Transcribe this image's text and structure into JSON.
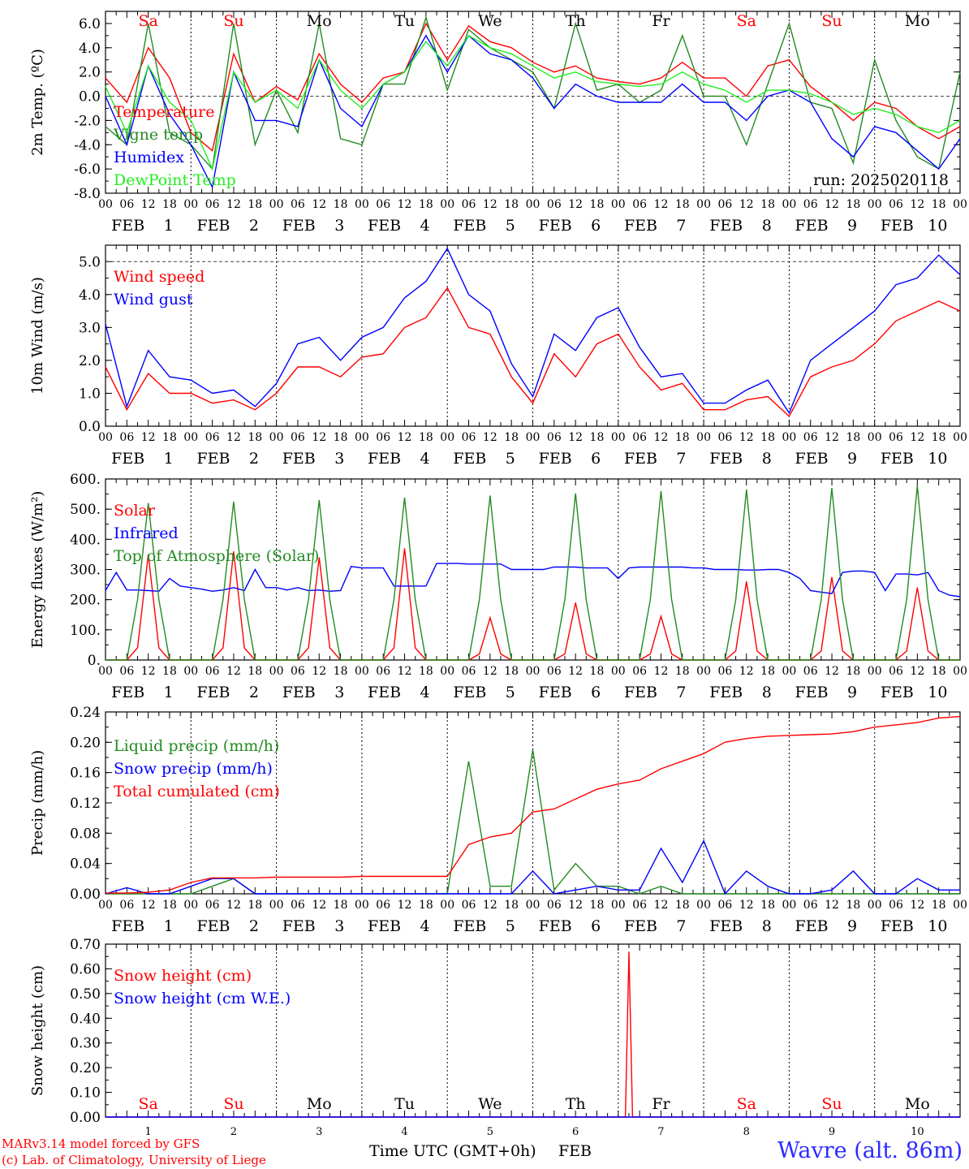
{
  "run_label": "run: 2025020118",
  "station": "Wavre (alt. 86m)",
  "credit": {
    "line1": "MARv3.14 model forced by GFS",
    "line2": "(c) Lab. of Climatology, University of Liege"
  },
  "time_axis": {
    "label": "Time UTC (GMT+0h)",
    "month": "FEB",
    "hour_ticks": [
      "00",
      "06",
      "12",
      "18"
    ],
    "days": [
      "1",
      "2",
      "3",
      "4",
      "5",
      "6",
      "7",
      "8",
      "9",
      "10"
    ],
    "weekdays": [
      "Sa",
      "Su",
      "Mo",
      "Tu",
      "We",
      "Th",
      "Fr",
      "Sa",
      "Su",
      "Mo"
    ],
    "weekend_color": "#ff0000",
    "weekday_color": "#000000"
  },
  "chart_data": [
    {
      "type": "line",
      "ylabel": "2m Temp. (ºC)",
      "ylim": [
        -8,
        7
      ],
      "yticks": [
        "-8.0",
        "-6.0",
        "-4.0",
        "-2.0",
        "0.0",
        "2.0",
        "4.0",
        "6.0"
      ],
      "ytick_values": [
        -8,
        -6,
        -4,
        -2,
        0,
        2,
        4,
        6
      ],
      "zero_line": 0,
      "x": [
        0,
        6,
        12,
        18,
        24,
        30,
        36,
        42,
        48,
        54,
        60,
        66,
        72,
        78,
        84,
        90,
        96,
        102,
        108,
        114,
        120,
        126,
        132,
        138,
        144,
        150,
        156,
        162,
        168,
        174,
        180,
        186,
        192,
        198,
        204,
        210,
        216,
        222,
        228,
        234,
        240
      ],
      "series": [
        {
          "name": "Temperature",
          "color": "#ff0000",
          "values": [
            1.5,
            -0.5,
            4.0,
            1.5,
            -3.0,
            -4.5,
            3.5,
            -0.5,
            0.8,
            -0.3,
            3.5,
            1.0,
            -0.5,
            1.5,
            2.0,
            6.0,
            3.0,
            5.8,
            4.5,
            4.0,
            2.8,
            2.0,
            2.5,
            1.5,
            1.2,
            1.0,
            1.5,
            2.8,
            1.5,
            1.5,
            0.0,
            2.5,
            3.0,
            0.8,
            -0.5,
            -2.0,
            -0.5,
            -1.0,
            -2.5,
            -3.5,
            -2.5
          ]
        },
        {
          "name": "Vigne temp",
          "color": "#228b22",
          "values": [
            -2.5,
            -4.0,
            6.0,
            -3.0,
            -4.0,
            -6.0,
            6.0,
            -4.0,
            0.5,
            -3.0,
            6.0,
            -3.5,
            -4.0,
            1.0,
            1.0,
            6.5,
            0.5,
            5.5,
            4.0,
            3.0,
            2.0,
            -1.0,
            6.0,
            0.5,
            1.0,
            -0.5,
            0.5,
            5.0,
            0.0,
            0.0,
            -4.0,
            1.0,
            6.0,
            -0.5,
            -1.0,
            -5.5,
            3.0,
            -2.0,
            -5.0,
            -6.0,
            2.0
          ]
        },
        {
          "name": "Humidex",
          "color": "#0000ff",
          "values": [
            0.0,
            -4.0,
            2.5,
            -1.5,
            -4.0,
            -7.5,
            2.0,
            -2.0,
            -2.0,
            -2.5,
            3.0,
            -1.0,
            -2.5,
            1.0,
            2.0,
            5.0,
            2.0,
            5.0,
            3.5,
            3.0,
            1.5,
            -1.0,
            1.0,
            0.0,
            -0.5,
            -0.5,
            -0.5,
            1.0,
            -0.5,
            -0.5,
            -2.0,
            0.0,
            0.5,
            -0.5,
            -3.5,
            -5.0,
            -2.5,
            -3.0,
            -4.5,
            -6.0,
            -3.5
          ]
        },
        {
          "name": "DewPoint Temp",
          "color": "#22ee22",
          "values": [
            0.8,
            -3.0,
            2.5,
            -0.5,
            -2.0,
            -6.0,
            2.0,
            -0.5,
            0.5,
            -1.0,
            3.0,
            0.5,
            -1.0,
            1.0,
            2.0,
            4.5,
            2.5,
            5.0,
            4.0,
            3.5,
            2.5,
            1.5,
            2.0,
            1.2,
            1.0,
            0.8,
            1.0,
            2.0,
            1.0,
            0.5,
            -0.5,
            0.5,
            0.5,
            0.2,
            -0.5,
            -1.5,
            -1.0,
            -1.5,
            -2.5,
            -3.0,
            -2.0
          ]
        }
      ],
      "legend_placement": "left"
    },
    {
      "type": "line",
      "ylabel": "10m Wind (m/s)",
      "ylim": [
        0,
        5.5
      ],
      "yticks": [
        "0.0",
        "1.0",
        "2.0",
        "3.0",
        "4.0",
        "5.0"
      ],
      "ytick_values": [
        0,
        1,
        2,
        3,
        4,
        5
      ],
      "reference_line": 5,
      "x": [
        0,
        6,
        12,
        18,
        24,
        30,
        36,
        42,
        48,
        54,
        60,
        66,
        72,
        78,
        84,
        90,
        96,
        102,
        108,
        114,
        120,
        126,
        132,
        138,
        144,
        150,
        156,
        162,
        168,
        174,
        180,
        186,
        192,
        198,
        204,
        210,
        216,
        222,
        228,
        234,
        240
      ],
      "series": [
        {
          "name": "Wind speed",
          "color": "#ff0000",
          "values": [
            1.8,
            0.5,
            1.6,
            1.0,
            1.0,
            0.7,
            0.8,
            0.5,
            1.0,
            1.8,
            1.8,
            1.5,
            2.1,
            2.2,
            3.0,
            3.3,
            4.2,
            3.0,
            2.8,
            1.5,
            0.7,
            2.2,
            1.5,
            2.5,
            2.8,
            1.8,
            1.1,
            1.3,
            0.5,
            0.5,
            0.8,
            0.9,
            0.3,
            1.5,
            1.8,
            2.0,
            2.5,
            3.2,
            3.5,
            3.8,
            3.5
          ]
        },
        {
          "name": "Wind gust",
          "color": "#0000ff",
          "values": [
            3.1,
            0.6,
            2.3,
            1.5,
            1.4,
            1.0,
            1.1,
            0.6,
            1.3,
            2.5,
            2.7,
            2.0,
            2.7,
            3.0,
            3.9,
            4.4,
            5.4,
            4.0,
            3.5,
            1.9,
            0.9,
            2.8,
            2.3,
            3.3,
            3.6,
            2.4,
            1.5,
            1.6,
            0.7,
            0.7,
            1.1,
            1.4,
            0.4,
            2.0,
            2.5,
            3.0,
            3.5,
            4.3,
            4.5,
            5.2,
            4.6
          ]
        }
      ],
      "legend_placement": "left"
    },
    {
      "type": "line",
      "ylabel": "Energy fluxes (W/m²)",
      "ylim": [
        0,
        600
      ],
      "yticks": [
        "0.",
        "100.",
        "200.",
        "300.",
        "400.",
        "500.",
        "600."
      ],
      "ytick_values": [
        0,
        100,
        200,
        300,
        400,
        500,
        600
      ],
      "x": [
        0,
        3,
        6,
        9,
        12,
        15,
        18,
        21,
        24,
        27,
        30,
        33,
        36,
        39,
        42,
        45,
        48,
        51,
        54,
        57,
        60,
        63,
        66,
        69,
        72,
        75,
        78,
        81,
        84,
        87,
        90,
        93,
        96,
        99,
        102,
        105,
        108,
        111,
        114,
        117,
        120,
        123,
        126,
        129,
        132,
        135,
        138,
        141,
        144,
        147,
        150,
        153,
        156,
        159,
        162,
        165,
        168,
        171,
        174,
        177,
        180,
        183,
        186,
        189,
        192,
        195,
        198,
        201,
        204,
        207,
        210,
        213,
        216,
        219,
        222,
        225,
        228,
        231,
        234,
        237,
        240
      ],
      "series": [
        {
          "name": "Solar",
          "color": "#ff0000",
          "values": [
            0,
            0,
            0,
            40,
            350,
            40,
            0,
            0,
            0,
            0,
            0,
            40,
            360,
            40,
            0,
            0,
            0,
            0,
            0,
            40,
            340,
            40,
            0,
            0,
            0,
            0,
            0,
            40,
            370,
            40,
            0,
            0,
            0,
            0,
            0,
            20,
            140,
            20,
            0,
            0,
            0,
            0,
            0,
            20,
            190,
            20,
            0,
            0,
            0,
            0,
            0,
            20,
            145,
            20,
            0,
            0,
            0,
            0,
            0,
            30,
            260,
            30,
            0,
            0,
            0,
            0,
            0,
            30,
            275,
            30,
            0,
            0,
            0,
            0,
            0,
            30,
            240,
            30,
            0,
            0,
            0
          ]
        },
        {
          "name": "Infrared",
          "color": "#0000ff",
          "values": [
            230,
            290,
            232,
            232,
            230,
            228,
            270,
            245,
            240,
            235,
            228,
            232,
            240,
            230,
            300,
            240,
            240,
            232,
            240,
            230,
            232,
            228,
            230,
            310,
            305,
            305,
            305,
            245,
            245,
            245,
            245,
            320,
            320,
            320,
            318,
            318,
            318,
            318,
            300,
            300,
            300,
            300,
            308,
            308,
            308,
            305,
            305,
            305,
            270,
            305,
            308,
            308,
            308,
            308,
            308,
            305,
            305,
            300,
            300,
            300,
            298,
            298,
            300,
            300,
            290,
            270,
            230,
            225,
            220,
            290,
            295,
            295,
            290,
            230,
            285,
            285,
            282,
            290,
            230,
            215,
            210
          ]
        },
        {
          "name": "Top of Atmosphere (Solar)",
          "color": "#228b22",
          "values": [
            0,
            0,
            0,
            200,
            520,
            200,
            0,
            0,
            0,
            0,
            0,
            200,
            525,
            200,
            0,
            0,
            0,
            0,
            0,
            200,
            530,
            200,
            0,
            0,
            0,
            0,
            0,
            200,
            538,
            200,
            0,
            0,
            0,
            0,
            0,
            200,
            545,
            200,
            0,
            0,
            0,
            0,
            0,
            200,
            552,
            200,
            0,
            0,
            0,
            0,
            0,
            200,
            560,
            200,
            0,
            0,
            0,
            0,
            0,
            200,
            565,
            200,
            0,
            0,
            0,
            0,
            0,
            200,
            570,
            200,
            0,
            0,
            0,
            0,
            0,
            200,
            578,
            200,
            0,
            0,
            0
          ]
        }
      ],
      "legend_placement": "left"
    },
    {
      "type": "line",
      "ylabel": "Precip (mm/h)",
      "ylim": [
        0,
        0.24
      ],
      "yticks": [
        "0.00",
        "0.04",
        "0.08",
        "0.12",
        "0.16",
        "0.20",
        "0.24"
      ],
      "ytick_values": [
        0,
        0.04,
        0.08,
        0.12,
        0.16,
        0.2,
        0.24
      ],
      "x": [
        0,
        6,
        12,
        18,
        24,
        30,
        36,
        42,
        48,
        54,
        60,
        66,
        72,
        78,
        84,
        90,
        96,
        102,
        108,
        114,
        120,
        126,
        132,
        138,
        144,
        150,
        156,
        162,
        168,
        174,
        180,
        186,
        192,
        198,
        204,
        210,
        216,
        222,
        228,
        234,
        240
      ],
      "series": [
        {
          "name": "Liquid precip (mm/h)",
          "color": "#228b22",
          "values": [
            0,
            0,
            0,
            0,
            0,
            0.01,
            0.02,
            0,
            0,
            0,
            0,
            0,
            0,
            0,
            0,
            0,
            0,
            0.175,
            0.01,
            0.01,
            0.19,
            0.005,
            0.04,
            0.01,
            0.01,
            0,
            0.01,
            0,
            0,
            0,
            0,
            0,
            0,
            0,
            0,
            0,
            0,
            0,
            0,
            0,
            0
          ]
        },
        {
          "name": "Snow precip (mm/h)",
          "color": "#0000ff",
          "values": [
            0,
            0.008,
            0,
            0,
            0.01,
            0.02,
            0.02,
            0,
            0,
            0,
            0,
            0,
            0,
            0,
            0,
            0,
            0,
            0,
            0,
            0,
            0.03,
            0,
            0.005,
            0.01,
            0.005,
            0.005,
            0.06,
            0.015,
            0.07,
            0,
            0.03,
            0.01,
            0,
            0,
            0.005,
            0.03,
            0,
            0,
            0.02,
            0.005,
            0.005
          ]
        },
        {
          "name": "Total cumulated (cm)",
          "color": "#ff0000",
          "values": [
            0.001,
            0.001,
            0.002,
            0.005,
            0.015,
            0.021,
            0.021,
            0.021,
            0.022,
            0.022,
            0.022,
            0.022,
            0.023,
            0.023,
            0.023,
            0.023,
            0.023,
            0.065,
            0.075,
            0.08,
            0.108,
            0.112,
            0.125,
            0.138,
            0.145,
            0.15,
            0.165,
            0.175,
            0.185,
            0.2,
            0.205,
            0.208,
            0.209,
            0.21,
            0.211,
            0.214,
            0.22,
            0.223,
            0.226,
            0.232,
            0.234
          ]
        }
      ],
      "legend_placement": "left"
    },
    {
      "type": "line",
      "ylabel": "Snow height (cm)",
      "ylim": [
        0,
        0.7
      ],
      "yticks": [
        "0.00",
        "0.10",
        "0.20",
        "0.30",
        "0.40",
        "0.50",
        "0.60",
        "0.70"
      ],
      "ytick_values": [
        0,
        0.1,
        0.2,
        0.3,
        0.4,
        0.5,
        0.6,
        0.7
      ],
      "x": [
        0,
        144,
        146,
        147,
        148,
        150,
        240
      ],
      "series": [
        {
          "name": "Snow height (cm)",
          "color": "#ff0000",
          "values": [
            0,
            0,
            0,
            0.67,
            0,
            0,
            0
          ]
        },
        {
          "name": "Snow height (cm W.E.)",
          "color": "#0000ff",
          "values": [
            0,
            0,
            0,
            0,
            0,
            0,
            0
          ]
        }
      ],
      "legend_placement": "left"
    }
  ]
}
